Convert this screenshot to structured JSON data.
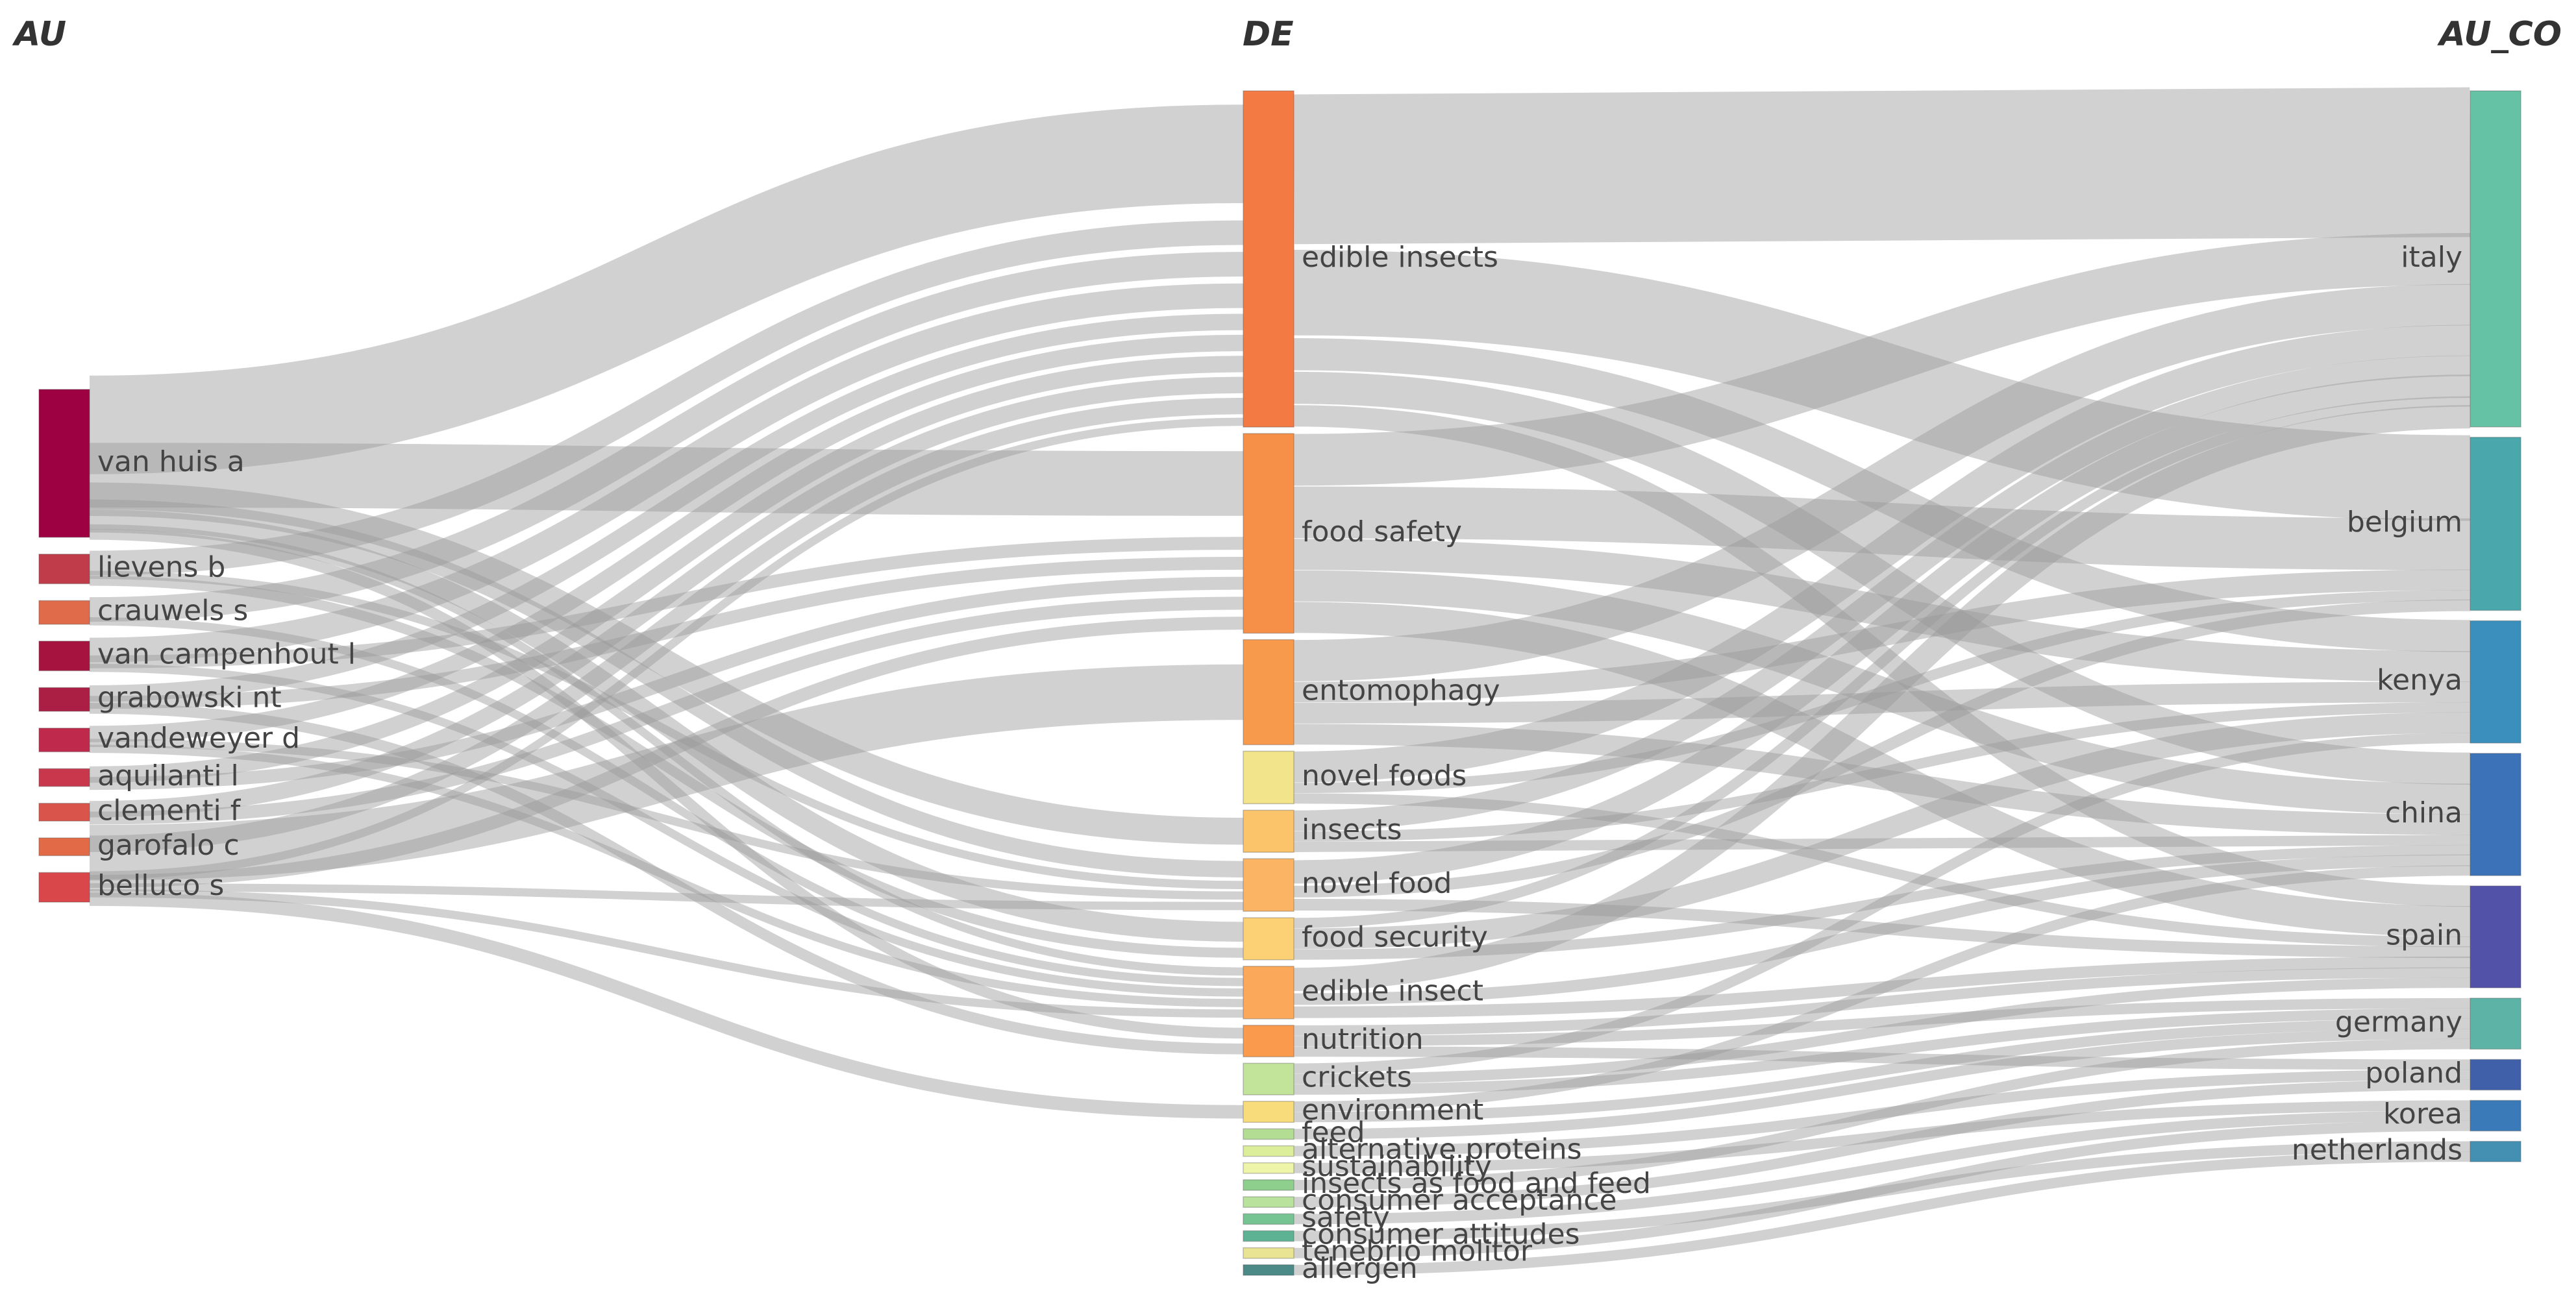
{
  "columns": [
    {
      "key": "au",
      "title": "AU"
    },
    {
      "key": "de",
      "title": "DE"
    },
    {
      "key": "au_co",
      "title": "AU_CO"
    }
  ],
  "nodes": {
    "au": [
      {
        "label": "van huis a",
        "color": "#9e0142"
      },
      {
        "label": "lievens b",
        "color": "#c13c4a"
      },
      {
        "label": "crauwels s",
        "color": "#e06b4b"
      },
      {
        "label": "van campenhout l",
        "color": "#a6133f"
      },
      {
        "label": "grabowski nt",
        "color": "#ac1f45"
      },
      {
        "label": "vandeweyer d",
        "color": "#bf2a4c"
      },
      {
        "label": "aquilanti l",
        "color": "#c8374b"
      },
      {
        "label": "clementi f",
        "color": "#d9544a"
      },
      {
        "label": "garofalo c",
        "color": "#e26a47"
      },
      {
        "label": "belluco s",
        "color": "#d9474a"
      }
    ],
    "de": [
      {
        "label": "edible insects",
        "color": "#f47a44"
      },
      {
        "label": "food safety",
        "color": "#f68f48"
      },
      {
        "label": "entomophagy",
        "color": "#f89a4c"
      },
      {
        "label": "novel foods",
        "color": "#f2e48a"
      },
      {
        "label": "insects",
        "color": "#fbc36a"
      },
      {
        "label": "novel food",
        "color": "#fbb463"
      },
      {
        "label": "food security",
        "color": "#fcd074"
      },
      {
        "label": "edible insect",
        "color": "#fba85a"
      },
      {
        "label": "nutrition",
        "color": "#f99a4d"
      },
      {
        "label": "crickets",
        "color": "#c2e39a"
      },
      {
        "label": "environment",
        "color": "#f8dc7c"
      },
      {
        "label": "feed",
        "color": "#b3dd93"
      },
      {
        "label": "alternative proteins",
        "color": "#dcee9a"
      },
      {
        "label": "sustainability",
        "color": "#eef4a8"
      },
      {
        "label": "insects as food and feed",
        "color": "#8fcf8e"
      },
      {
        "label": "consumer acceptance",
        "color": "#b9e29c"
      },
      {
        "label": "safety",
        "color": "#77c493"
      },
      {
        "label": "consumer attitudes",
        "color": "#5cb293"
      },
      {
        "label": "tenebrio molitor",
        "color": "#e8e493"
      },
      {
        "label": "allergen",
        "color": "#4b8a86"
      }
    ],
    "au_co": [
      {
        "label": "italy",
        "color": "#66c2a5"
      },
      {
        "label": "belgium",
        "color": "#4aa8ad"
      },
      {
        "label": "kenya",
        "color": "#3a8fbc"
      },
      {
        "label": "china",
        "color": "#3c72b7"
      },
      {
        "label": "spain",
        "color": "#5252a8"
      },
      {
        "label": "germany",
        "color": "#5cb3a6"
      },
      {
        "label": "poland",
        "color": "#4160aa"
      },
      {
        "label": "korea",
        "color": "#3a7ab8"
      },
      {
        "label": "netherlands",
        "color": "#4490b3"
      }
    ]
  },
  "links_au_de": [
    [
      "van huis a",
      "edible insects",
      12
    ],
    [
      "van huis a",
      "food safety",
      5
    ],
    [
      "van huis a",
      "insects",
      2
    ],
    [
      "van huis a",
      "novel food",
      2
    ],
    [
      "van huis a",
      "food security",
      2
    ],
    [
      "van huis a",
      "edible insect",
      1
    ],
    [
      "van huis a",
      "nutrition",
      1
    ],
    [
      "lievens b",
      "edible insects",
      3
    ],
    [
      "lievens b",
      "novel food",
      1
    ],
    [
      "lievens b",
      "food security",
      1
    ],
    [
      "crauwels s",
      "edible insects",
      3
    ],
    [
      "crauwels s",
      "edible insect",
      1
    ],
    [
      "van campenhout l",
      "edible insects",
      3
    ],
    [
      "van campenhout l",
      "food safety",
      1
    ],
    [
      "van campenhout l",
      "edible insect",
      1
    ],
    [
      "grabowski nt",
      "edible insects",
      2
    ],
    [
      "grabowski nt",
      "food safety",
      1
    ],
    [
      "grabowski nt",
      "nutrition",
      1
    ],
    [
      "vandeweyer d",
      "edible insects",
      2
    ],
    [
      "vandeweyer d",
      "edible insect",
      1
    ],
    [
      "vandeweyer d",
      "novel food",
      1
    ],
    [
      "aquilanti l",
      "edible insects",
      2
    ],
    [
      "aquilanti l",
      "food safety",
      1
    ],
    [
      "clementi f",
      "edible insects",
      2
    ],
    [
      "clementi f",
      "food safety",
      1
    ],
    [
      "garofalo c",
      "edible insects",
      2
    ],
    [
      "garofalo c",
      "entomophagy",
      1
    ],
    [
      "belluco s",
      "edible insects",
      1
    ],
    [
      "belluco s",
      "food safety",
      1
    ],
    [
      "belluco s",
      "novel food",
      1
    ],
    [
      "belluco s",
      "edible insect",
      1
    ],
    [
      "belluco s",
      "environment",
      1
    ]
  ],
  "links_de_auco": [
    [
      "edible insects",
      "italy",
      14
    ],
    [
      "edible insects",
      "belgium",
      8
    ],
    [
      "edible insects",
      "kenya",
      3
    ],
    [
      "edible insects",
      "china",
      3
    ],
    [
      "edible insects",
      "spain",
      2
    ],
    [
      "food safety",
      "italy",
      5
    ],
    [
      "food safety",
      "belgium",
      5
    ],
    [
      "food safety",
      "kenya",
      3
    ],
    [
      "food safety",
      "china",
      3
    ],
    [
      "food safety",
      "spain",
      3
    ],
    [
      "entomophagy",
      "italy",
      4
    ],
    [
      "entomophagy",
      "belgium",
      2
    ],
    [
      "entomophagy",
      "kenya",
      2
    ],
    [
      "entomophagy",
      "china",
      2
    ],
    [
      "novel foods",
      "italy",
      3
    ],
    [
      "novel foods",
      "belgium",
      1
    ],
    [
      "novel foods",
      "spain",
      1
    ],
    [
      "insects",
      "italy",
      2
    ],
    [
      "insects",
      "kenya",
      1
    ],
    [
      "insects",
      "china",
      1
    ],
    [
      "novel food",
      "italy",
      2
    ],
    [
      "novel food",
      "belgium",
      1
    ],
    [
      "novel food",
      "spain",
      1
    ],
    [
      "food security",
      "italy",
      1
    ],
    [
      "food security",
      "kenya",
      2
    ],
    [
      "food security",
      "china",
      1
    ],
    [
      "edible insect",
      "italy",
      2
    ],
    [
      "edible insect",
      "china",
      1
    ],
    [
      "edible insect",
      "spain",
      1
    ],
    [
      "nutrition",
      "spain",
      1
    ],
    [
      "nutrition",
      "germany",
      1
    ],
    [
      "nutrition",
      "poland",
      1
    ],
    [
      "crickets",
      "kenya",
      1
    ],
    [
      "crickets",
      "spain",
      1
    ],
    [
      "crickets",
      "germany",
      1
    ],
    [
      "environment",
      "china",
      1
    ],
    [
      "environment",
      "germany",
      1
    ],
    [
      "feed",
      "germany",
      1
    ],
    [
      "alternative proteins",
      "poland",
      1
    ],
    [
      "sustainability",
      "korea",
      1
    ],
    [
      "insects as food and feed",
      "germany",
      1
    ],
    [
      "consumer acceptance",
      "poland",
      1
    ],
    [
      "safety",
      "korea",
      1
    ],
    [
      "consumer attitudes",
      "netherlands",
      1
    ],
    [
      "tenebrio molitor",
      "korea",
      1
    ],
    [
      "allergen",
      "netherlands",
      1
    ]
  ]
}
